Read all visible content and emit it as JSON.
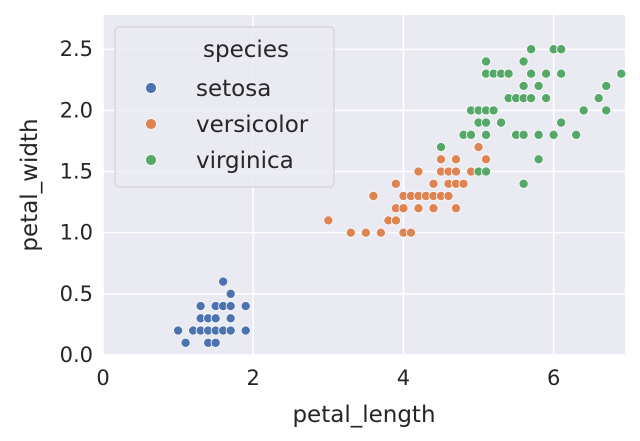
{
  "chart_data": {
    "type": "scatter",
    "title": "",
    "xlabel": "petal_length",
    "ylabel": "petal_width",
    "xlim": [
      0,
      6.95
    ],
    "ylim": [
      0,
      2.78
    ],
    "xticks": [
      0,
      2,
      4,
      6
    ],
    "xtick_labels": [
      "0",
      "2",
      "4",
      "6"
    ],
    "yticks": [
      0.0,
      0.5,
      1.0,
      1.5,
      2.0,
      2.5
    ],
    "ytick_labels": [
      "0.0",
      "0.5",
      "1.0",
      "1.5",
      "2.0",
      "2.5"
    ],
    "grid": true,
    "legend": {
      "title": "species",
      "placement": "upper-left"
    },
    "series": [
      {
        "name": "setosa",
        "color": "#4c72b0",
        "points": [
          [
            1.0,
            0.2
          ],
          [
            1.1,
            0.1
          ],
          [
            1.2,
            0.2
          ],
          [
            1.3,
            0.2
          ],
          [
            1.3,
            0.3
          ],
          [
            1.3,
            0.4
          ],
          [
            1.4,
            0.1
          ],
          [
            1.4,
            0.2
          ],
          [
            1.4,
            0.3
          ],
          [
            1.5,
            0.1
          ],
          [
            1.5,
            0.2
          ],
          [
            1.5,
            0.3
          ],
          [
            1.5,
            0.4
          ],
          [
            1.6,
            0.2
          ],
          [
            1.6,
            0.4
          ],
          [
            1.6,
            0.6
          ],
          [
            1.7,
            0.2
          ],
          [
            1.7,
            0.3
          ],
          [
            1.7,
            0.4
          ],
          [
            1.7,
            0.5
          ],
          [
            1.9,
            0.2
          ],
          [
            1.9,
            0.4
          ]
        ]
      },
      {
        "name": "versicolor",
        "color": "#dd8452",
        "points": [
          [
            3.0,
            1.1
          ],
          [
            3.3,
            1.0
          ],
          [
            3.5,
            1.0
          ],
          [
            3.6,
            1.3
          ],
          [
            3.7,
            1.0
          ],
          [
            3.8,
            1.1
          ],
          [
            3.9,
            1.1
          ],
          [
            3.9,
            1.2
          ],
          [
            3.9,
            1.4
          ],
          [
            4.0,
            1.0
          ],
          [
            4.0,
            1.2
          ],
          [
            4.0,
            1.3
          ],
          [
            4.1,
            1.0
          ],
          [
            4.1,
            1.3
          ],
          [
            4.2,
            1.2
          ],
          [
            4.2,
            1.3
          ],
          [
            4.2,
            1.5
          ],
          [
            4.3,
            1.3
          ],
          [
            4.4,
            1.2
          ],
          [
            4.4,
            1.3
          ],
          [
            4.4,
            1.4
          ],
          [
            4.5,
            1.3
          ],
          [
            4.5,
            1.5
          ],
          [
            4.5,
            1.6
          ],
          [
            4.6,
            1.3
          ],
          [
            4.6,
            1.4
          ],
          [
            4.6,
            1.5
          ],
          [
            4.7,
            1.2
          ],
          [
            4.7,
            1.4
          ],
          [
            4.7,
            1.5
          ],
          [
            4.7,
            1.6
          ],
          [
            4.8,
            1.4
          ],
          [
            4.8,
            1.8
          ],
          [
            4.9,
            1.5
          ],
          [
            5.0,
            1.7
          ],
          [
            5.1,
            1.6
          ]
        ]
      },
      {
        "name": "virginica",
        "color": "#55a868",
        "points": [
          [
            4.5,
            1.7
          ],
          [
            4.8,
            1.8
          ],
          [
            4.9,
            1.8
          ],
          [
            4.9,
            2.0
          ],
          [
            5.0,
            1.5
          ],
          [
            5.0,
            1.9
          ],
          [
            5.0,
            2.0
          ],
          [
            5.1,
            1.5
          ],
          [
            5.1,
            1.8
          ],
          [
            5.1,
            1.9
          ],
          [
            5.1,
            2.0
          ],
          [
            5.1,
            2.3
          ],
          [
            5.1,
            2.4
          ],
          [
            5.2,
            2.0
          ],
          [
            5.2,
            2.3
          ],
          [
            5.3,
            1.9
          ],
          [
            5.3,
            2.3
          ],
          [
            5.4,
            2.1
          ],
          [
            5.4,
            2.3
          ],
          [
            5.5,
            1.8
          ],
          [
            5.5,
            2.1
          ],
          [
            5.6,
            1.4
          ],
          [
            5.6,
            1.8
          ],
          [
            5.6,
            2.1
          ],
          [
            5.6,
            2.2
          ],
          [
            5.6,
            2.4
          ],
          [
            5.7,
            2.1
          ],
          [
            5.7,
            2.3
          ],
          [
            5.7,
            2.5
          ],
          [
            5.8,
            1.6
          ],
          [
            5.8,
            1.8
          ],
          [
            5.8,
            2.2
          ],
          [
            5.9,
            2.1
          ],
          [
            5.9,
            2.3
          ],
          [
            6.0,
            1.8
          ],
          [
            6.0,
            2.5
          ],
          [
            6.1,
            1.9
          ],
          [
            6.1,
            2.3
          ],
          [
            6.1,
            2.5
          ],
          [
            6.3,
            1.8
          ],
          [
            6.4,
            2.0
          ],
          [
            6.6,
            2.1
          ],
          [
            6.7,
            2.0
          ],
          [
            6.7,
            2.2
          ],
          [
            6.9,
            2.3
          ]
        ]
      }
    ]
  }
}
